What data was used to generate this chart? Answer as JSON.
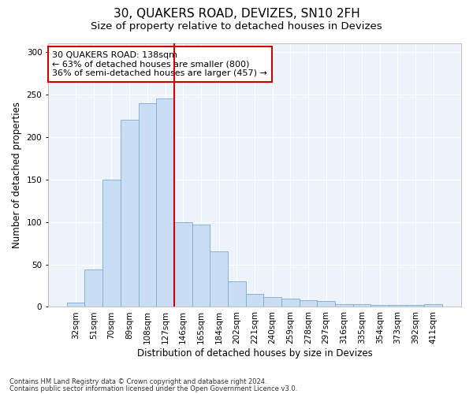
{
  "title1": "30, QUAKERS ROAD, DEVIZES, SN10 2FH",
  "title2": "Size of property relative to detached houses in Devizes",
  "xlabel": "Distribution of detached houses by size in Devizes",
  "ylabel": "Number of detached properties",
  "categories": [
    "32sqm",
    "51sqm",
    "70sqm",
    "89sqm",
    "108sqm",
    "127sqm",
    "146sqm",
    "165sqm",
    "184sqm",
    "202sqm",
    "221sqm",
    "240sqm",
    "259sqm",
    "278sqm",
    "297sqm",
    "316sqm",
    "335sqm",
    "354sqm",
    "373sqm",
    "392sqm",
    "411sqm"
  ],
  "values": [
    5,
    44,
    150,
    220,
    240,
    245,
    100,
    97,
    65,
    30,
    15,
    12,
    10,
    8,
    7,
    3,
    3,
    2,
    2,
    2,
    3
  ],
  "bar_color": "#c9ddf5",
  "bar_edge_color": "#7aaad4",
  "vline_x": 5.5,
  "vline_color": "#cc0000",
  "annotation_text": "30 QUAKERS ROAD: 138sqm\n← 63% of detached houses are smaller (800)\n36% of semi-detached houses are larger (457) →",
  "annotation_box_color": "#ffffff",
  "annotation_box_edge": "#cc0000",
  "ylim": [
    0,
    310
  ],
  "yticks": [
    0,
    50,
    100,
    150,
    200,
    250,
    300
  ],
  "footer1": "Contains HM Land Registry data © Crown copyright and database right 2024.",
  "footer2": "Contains public sector information licensed under the Open Government Licence v3.0.",
  "bg_color": "#e8eef8",
  "plot_bg_color": "#eef3fb",
  "title1_fontsize": 11,
  "title2_fontsize": 9.5,
  "annotation_fontsize": 8,
  "axis_label_fontsize": 8.5,
  "tick_fontsize": 7.5,
  "footer_fontsize": 6
}
